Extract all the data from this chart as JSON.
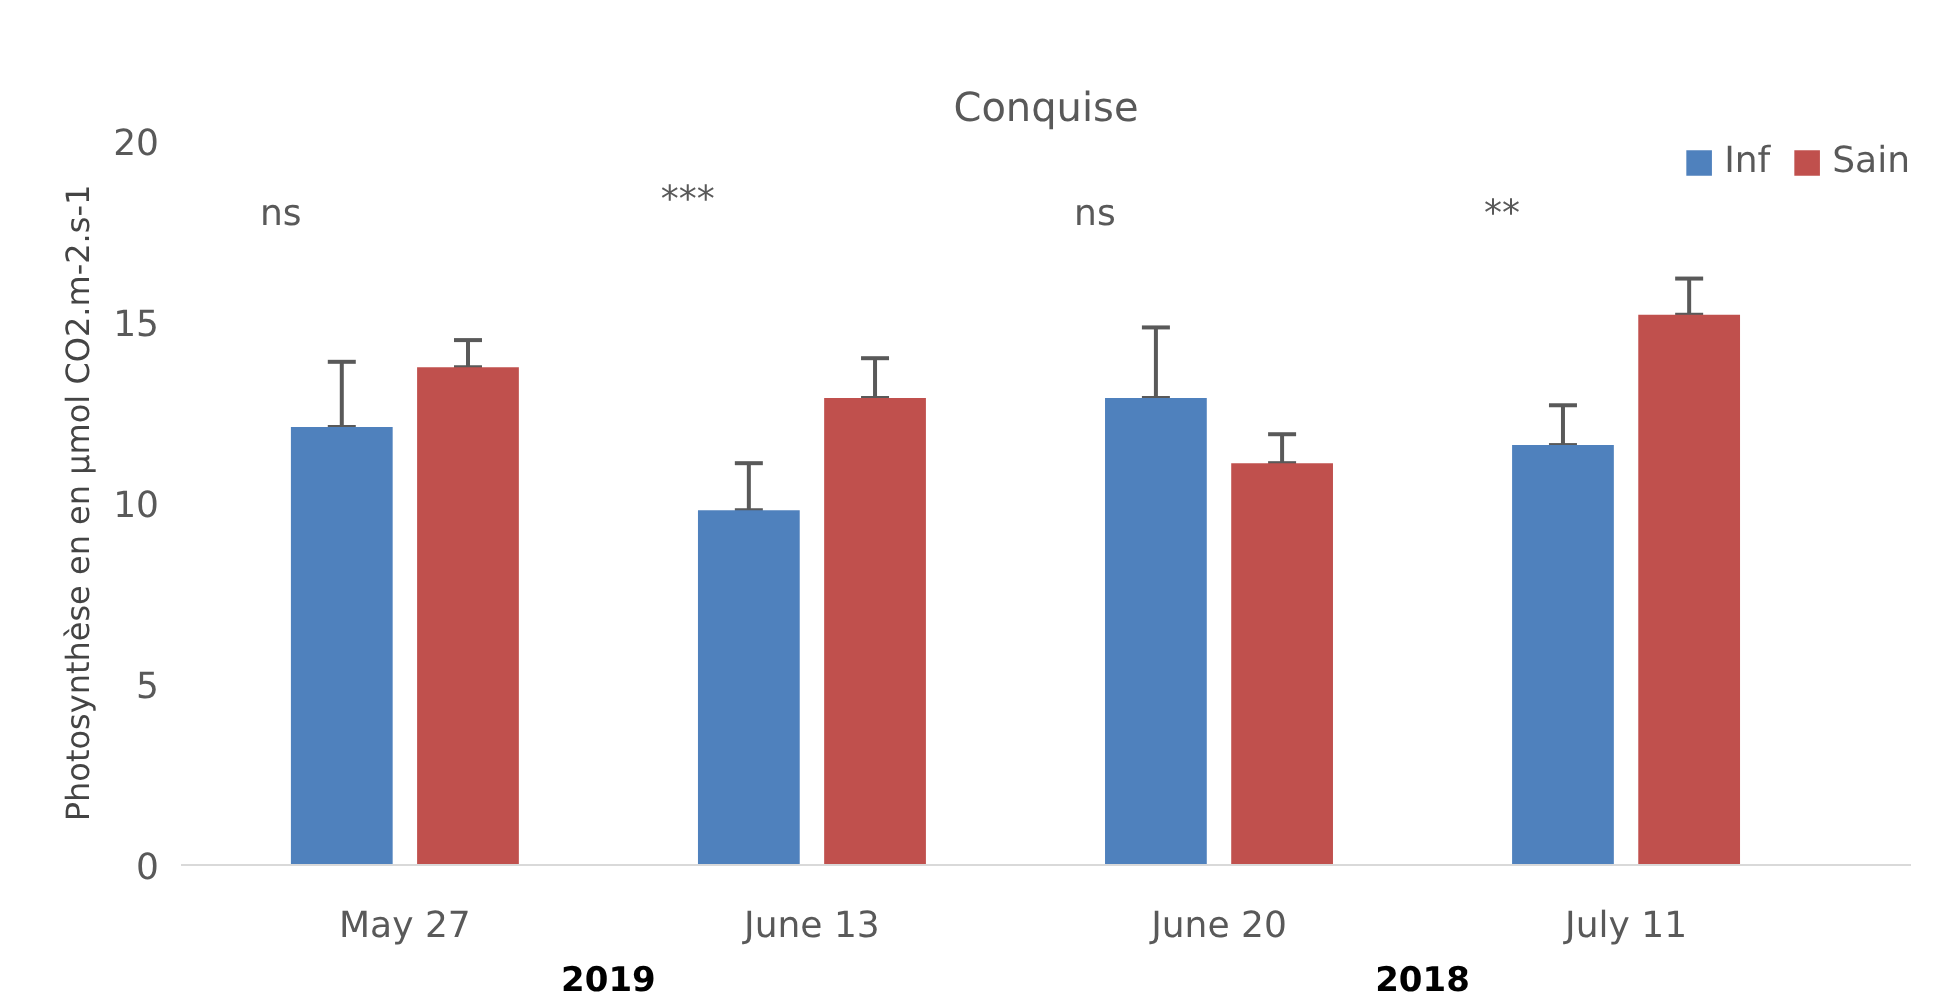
{
  "chart_data": {
    "type": "bar",
    "title": "Conquise",
    "ylabel": "Photosynthèse en en µmol CO2.m-2.s-1",
    "categories": [
      "May 27",
      "June 13",
      "June 20",
      "July 11"
    ],
    "series": [
      {
        "name": "Inf",
        "color": "#4f81bd",
        "values": [
          12.1,
          9.8,
          12.9,
          11.6
        ],
        "errors": [
          [
            12.1,
            13.9
          ],
          [
            9.8,
            11.1
          ],
          [
            12.9,
            14.85
          ],
          [
            11.6,
            12.7
          ]
        ]
      },
      {
        "name": "Sain",
        "color": "#c0504d",
        "values": [
          13.75,
          12.9,
          11.1,
          15.2
        ],
        "errors": [
          [
            13.75,
            14.5
          ],
          [
            12.9,
            14.0
          ],
          [
            11.1,
            11.9
          ],
          [
            15.2,
            16.2
          ]
        ]
      }
    ],
    "ylim": [
      0,
      20
    ],
    "yticks": [
      0,
      5,
      10,
      15,
      20
    ],
    "grid": false,
    "legend": "top right",
    "annotations": [
      "ns",
      "***",
      "ns",
      "**",
      "2019",
      "2018"
    ]
  }
}
